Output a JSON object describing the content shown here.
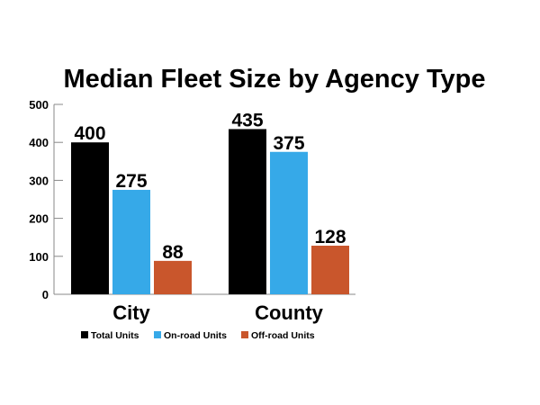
{
  "chart_data": {
    "type": "bar",
    "title": "Median Fleet Size by Agency Type",
    "xlabel": "",
    "ylabel": "",
    "ylim": [
      0,
      500
    ],
    "yticks": [
      "0",
      "100",
      "200",
      "300",
      "400",
      "500"
    ],
    "grid": false,
    "legend_position": "bottom",
    "categories": [
      "City",
      "County"
    ],
    "series": [
      {
        "name": "Total Units",
        "color": "#000000",
        "values": [
          400,
          435
        ]
      },
      {
        "name": "On-road Units",
        "color": "#36a9e8",
        "values": [
          275,
          375
        ]
      },
      {
        "name": "Off-road Units",
        "color": "#c9562c",
        "values": [
          88,
          128
        ]
      }
    ]
  }
}
